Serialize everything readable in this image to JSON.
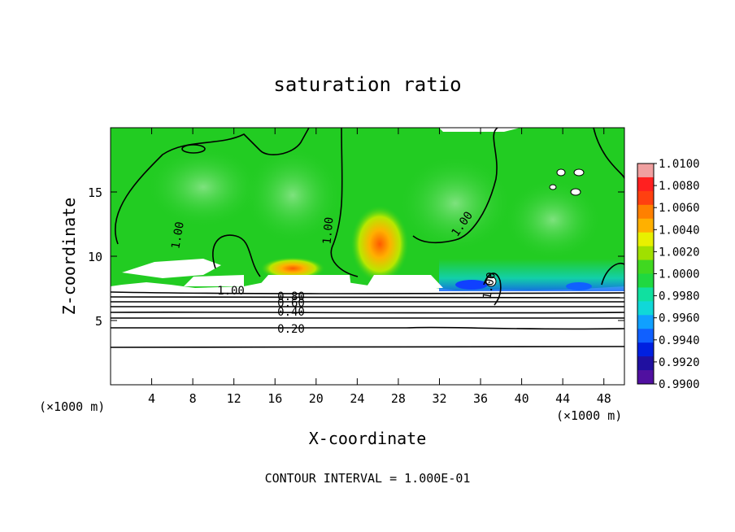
{
  "chart_data": {
    "type": "heatmap",
    "title": "saturation ratio",
    "xlabel": "X-coordinate",
    "ylabel": "Z-coordinate",
    "x_unit": "(×1000 m)",
    "xlim": [
      0,
      50
    ],
    "ylim": [
      0,
      20
    ],
    "x_ticks": [
      4,
      8,
      12,
      16,
      20,
      24,
      28,
      32,
      36,
      40,
      44,
      48
    ],
    "y_ticks": [
      5,
      10,
      15
    ],
    "colorbar": {
      "min": 0.99,
      "max": 1.01,
      "ticks": [
        "1.0100",
        "1.0080",
        "1.0060",
        "1.0040",
        "1.0020",
        "1.0000",
        "0.9980",
        "0.9960",
        "0.9940",
        "0.9920",
        "0.9900"
      ],
      "colors": [
        "#f0a0a0",
        "#ff2020",
        "#ff4010",
        "#ff8000",
        "#ffb000",
        "#e8f000",
        "#a0e000",
        "#40d820",
        "#20d840",
        "#10e0a0",
        "#10d8d8",
        "#10a0ff",
        "#1060ff",
        "#0020e0",
        "#2010a0",
        "#5010a0"
      ]
    },
    "contour_labels": [
      "1.00",
      "1.00",
      "1.00",
      "1.00",
      "1.00",
      "0.80",
      "0.60",
      "0.40",
      "0.20"
    ],
    "contour_interval_text": "CONTOUR INTERVAL = 1.000E-01",
    "fill_colors": {
      "background_field": "#22cc22",
      "warm_core": "#e8d000",
      "hot_core": "#ff6a00",
      "light_band": "#5fdc5f",
      "cool_band": "#10b8e8",
      "deep_cool": "#1040ff",
      "unsaturated": "#ffffff"
    }
  }
}
